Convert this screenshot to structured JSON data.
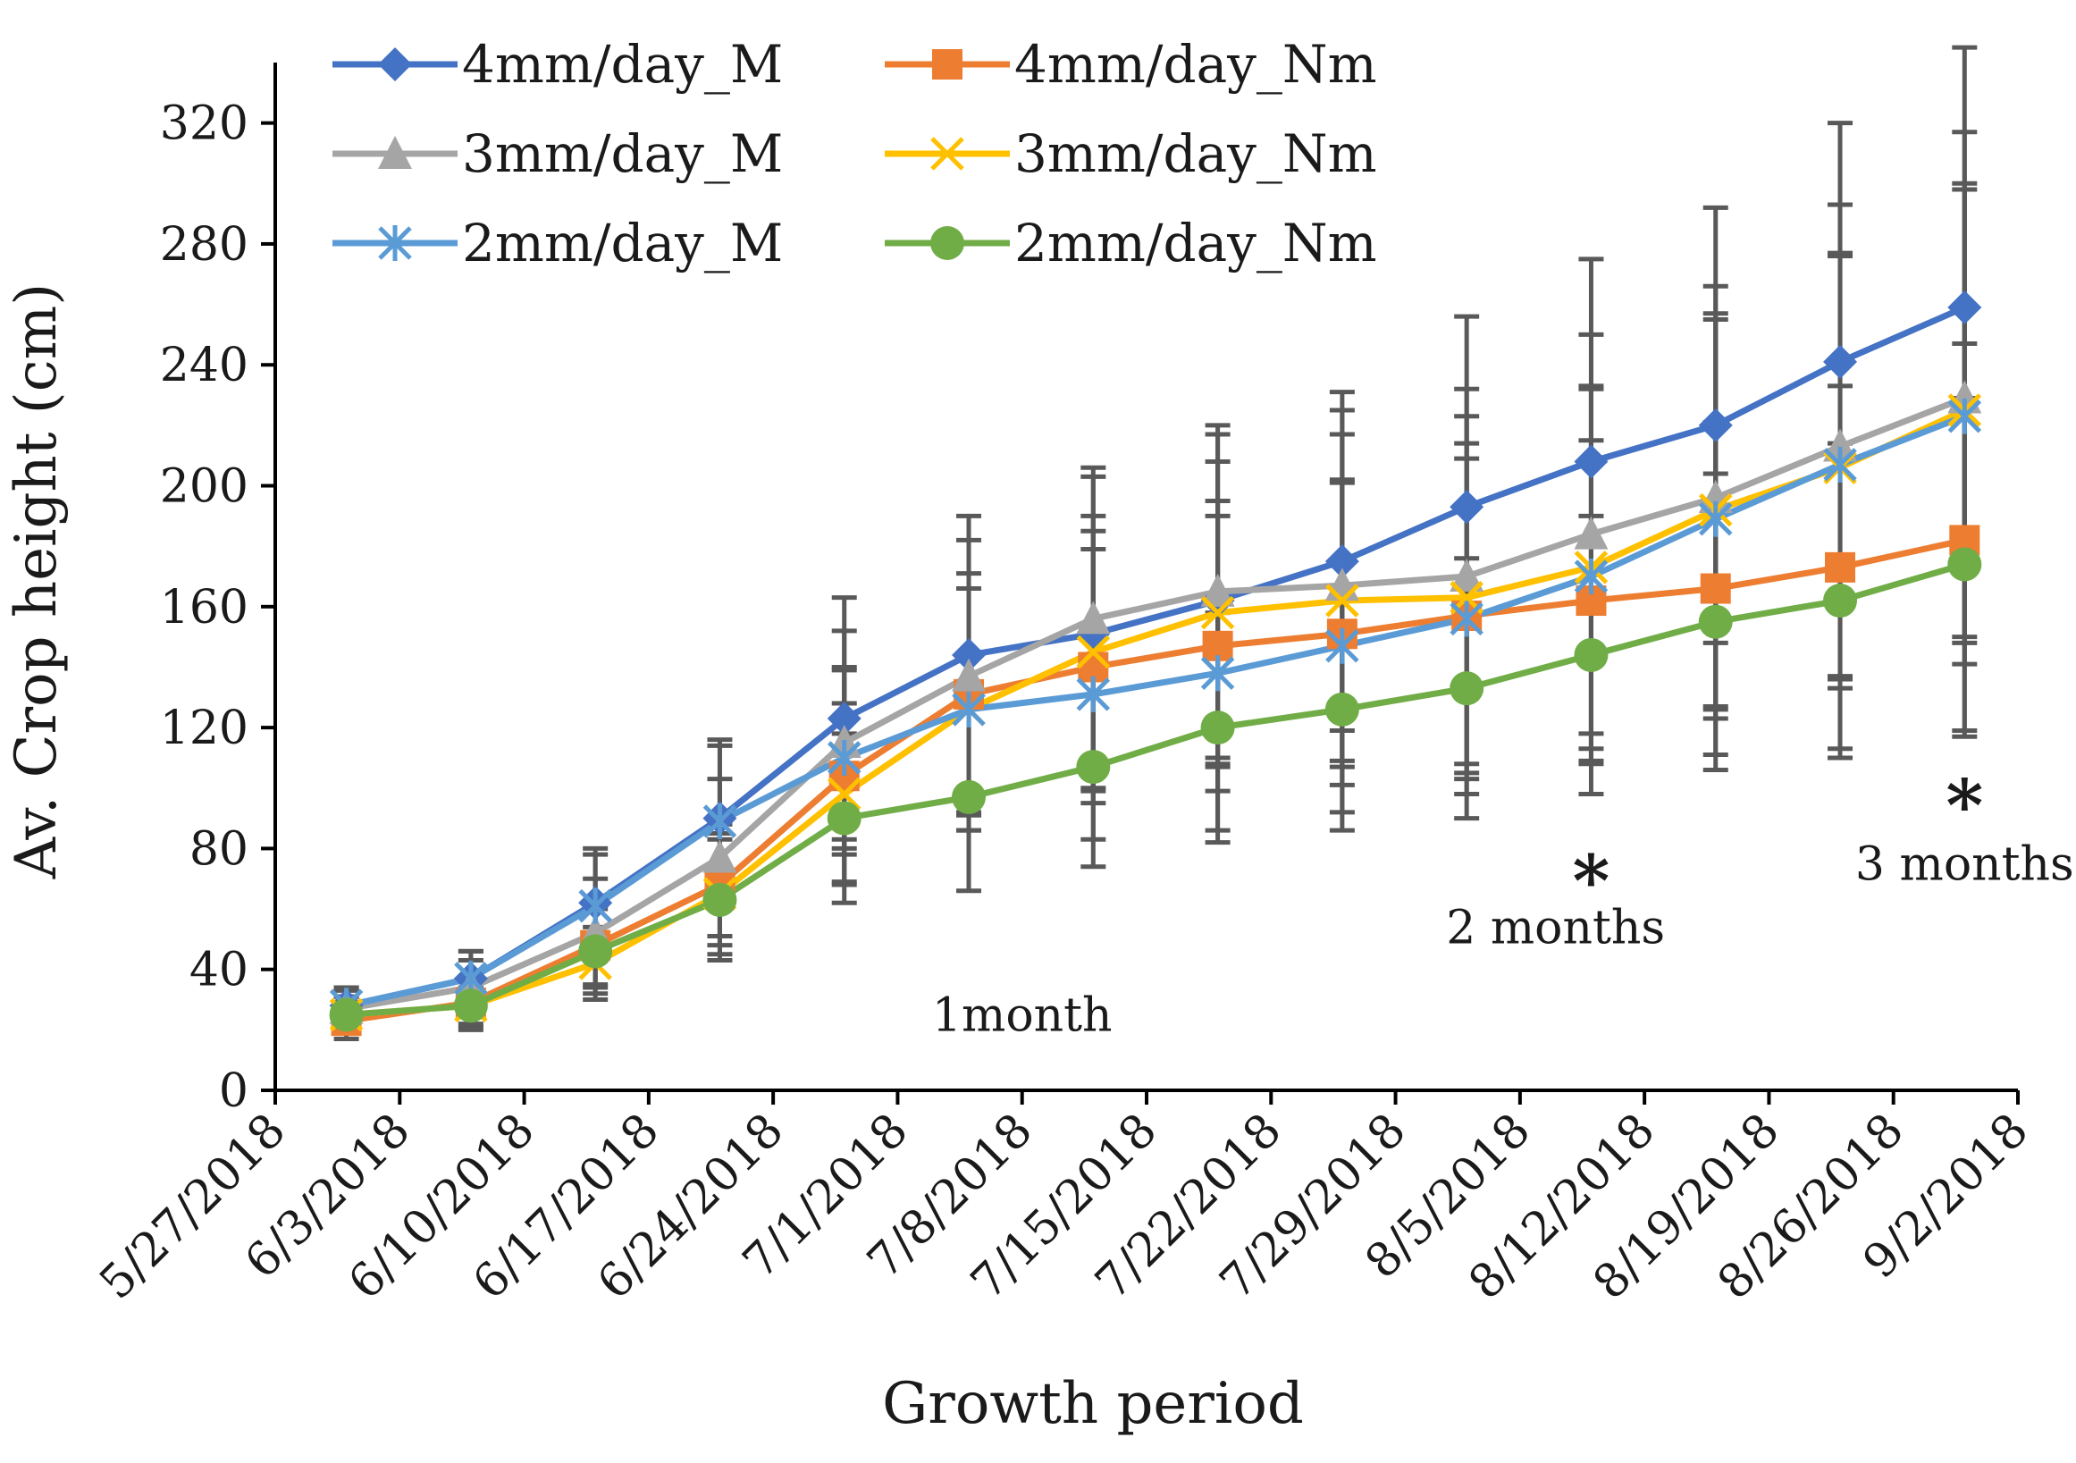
{
  "chart_data": {
    "type": "line",
    "xlabel": "Growth period",
    "ylabel": "Av. Crop height (cm)",
    "ylim": [
      0,
      340
    ],
    "yticks": [
      0,
      40,
      80,
      120,
      160,
      200,
      240,
      280,
      320
    ],
    "x_tick_labels": [
      "5/27/2018",
      "6/3/2018",
      "6/10/2018",
      "6/17/2018",
      "6/24/2018",
      "7/1/2018",
      "7/8/2018",
      "7/15/2018",
      "7/22/2018",
      "7/29/2018",
      "8/5/2018",
      "8/12/2018",
      "8/19/2018",
      "8/26/2018",
      "9/2/2018"
    ],
    "x_day_range": [
      0,
      98
    ],
    "x_days": [
      4,
      11,
      18,
      25,
      32,
      39,
      46,
      53,
      60,
      67,
      74,
      81,
      88,
      95
    ],
    "legend_position": "top-left, two columns",
    "series": [
      {
        "name": "4mm/day_M",
        "color": "#4472C4",
        "marker": "diamond",
        "values": [
          28,
          37,
          62,
          90,
          123,
          144,
          151,
          162,
          175,
          193,
          208,
          220,
          241,
          259
        ],
        "errors": [
          6,
          9,
          18,
          26,
          40,
          46,
          52,
          55,
          56,
          63,
          67,
          72,
          79,
          86
        ]
      },
      {
        "name": "4mm/day_Nm",
        "color": "#ED7D31",
        "marker": "square",
        "values": [
          23,
          29,
          48,
          68,
          104,
          131,
          140,
          147,
          151,
          157,
          162,
          166,
          173,
          182
        ],
        "errors": [
          6,
          8,
          13,
          20,
          35,
          40,
          45,
          48,
          50,
          52,
          53,
          55,
          60,
          65
        ]
      },
      {
        "name": "3mm/day_M",
        "color": "#A5A5A5",
        "marker": "triangle",
        "values": [
          27,
          34,
          52,
          77,
          115,
          137,
          156,
          165,
          167,
          170,
          184,
          196,
          213,
          229
        ],
        "errors": [
          6,
          9,
          18,
          26,
          37,
          45,
          50,
          55,
          58,
          62,
          66,
          70,
          80,
          88
        ]
      },
      {
        "name": "3mm/day_Nm",
        "color": "#FFC000",
        "marker": "x",
        "values": [
          25,
          28,
          42,
          65,
          98,
          126,
          145,
          158,
          162,
          163,
          173,
          192,
          206,
          225
        ],
        "errors": [
          6,
          8,
          12,
          20,
          30,
          40,
          45,
          50,
          55,
          60,
          60,
          65,
          70,
          75
        ]
      },
      {
        "name": "2mm/day_M",
        "color": "#5B9BD5",
        "marker": "star",
        "values": [
          28,
          37,
          61,
          89,
          110,
          126,
          131,
          138,
          147,
          156,
          170,
          189,
          207,
          223
        ],
        "errors": [
          6,
          9,
          17,
          25,
          30,
          40,
          48,
          52,
          55,
          58,
          62,
          66,
          70,
          75
        ]
      },
      {
        "name": "2mm/day_Nm",
        "color": "#70AD47",
        "marker": "circle",
        "values": [
          25,
          28,
          46,
          63,
          90,
          97,
          107,
          120,
          126,
          133,
          144,
          155,
          162,
          174
        ],
        "errors": [
          6,
          6,
          14,
          20,
          28,
          31,
          33,
          38,
          40,
          43,
          46,
          49,
          52,
          55
        ]
      }
    ],
    "annotations": [
      {
        "text": "1month",
        "day": 42,
        "y": 25
      },
      {
        "text": "2 months",
        "day": 72,
        "y": 54
      },
      {
        "text": "3 months",
        "day": 95,
        "y": 75
      },
      {
        "text": "*",
        "day": 74,
        "y": 74
      },
      {
        "text": "*",
        "day": 95,
        "y": 99
      }
    ]
  }
}
